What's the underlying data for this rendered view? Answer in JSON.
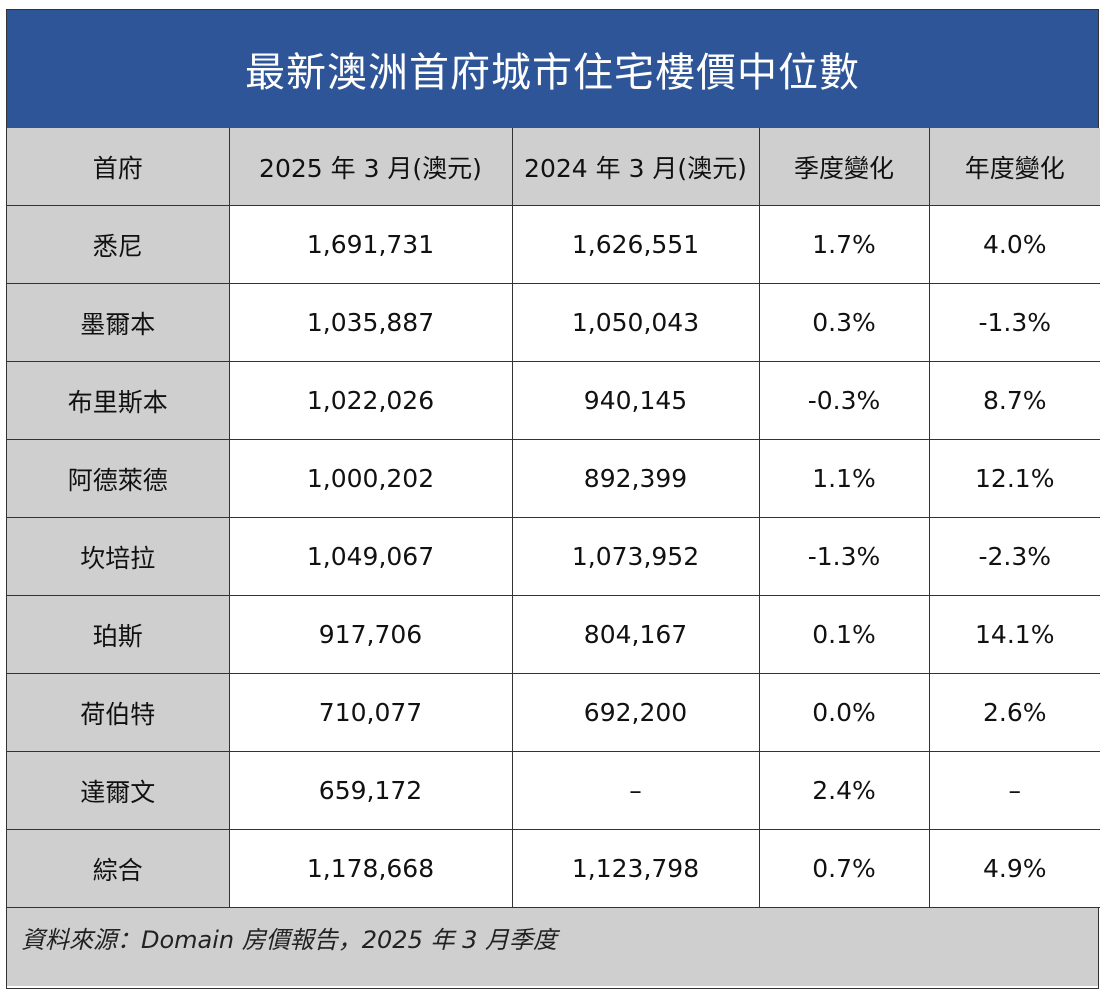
{
  "title": "最新澳洲首府城市住宅樓價中位數",
  "colors": {
    "title_bg": "#2e5597",
    "title_text": "#ffffff",
    "header_bg": "#cfcfcf",
    "city_bg": "#cfcfcf",
    "border": "#333333"
  },
  "table": {
    "headers": [
      "首府",
      "2025 年 3 月(澳元)",
      "2024 年 3 月(澳元)",
      "季度變化",
      "年度變化"
    ],
    "rows": [
      [
        "悉尼",
        "1,691,731",
        "1,626,551",
        "1.7%",
        "4.0%"
      ],
      [
        "墨爾本",
        "1,035,887",
        "1,050,043",
        "0.3%",
        "-1.3%"
      ],
      [
        "布里斯本",
        "1,022,026",
        "940,145",
        "-0.3%",
        "8.7%"
      ],
      [
        "阿德萊德",
        "1,000,202",
        "892,399",
        "1.1%",
        "12.1%"
      ],
      [
        "坎培拉",
        "1,049,067",
        "1,073,952",
        "-1.3%",
        "-2.3%"
      ],
      [
        "珀斯",
        "917,706",
        "804,167",
        "0.1%",
        "14.1%"
      ],
      [
        "荷伯特",
        "710,077",
        "692,200",
        "0.0%",
        "2.6%"
      ],
      [
        "達爾文",
        "659,172",
        "–",
        "2.4%",
        "–"
      ],
      [
        "綜合",
        "1,178,668",
        "1,123,798",
        "0.7%",
        "4.9%"
      ]
    ]
  },
  "footer": "資料來源：Domain 房價報告，2025 年 3 月季度"
}
